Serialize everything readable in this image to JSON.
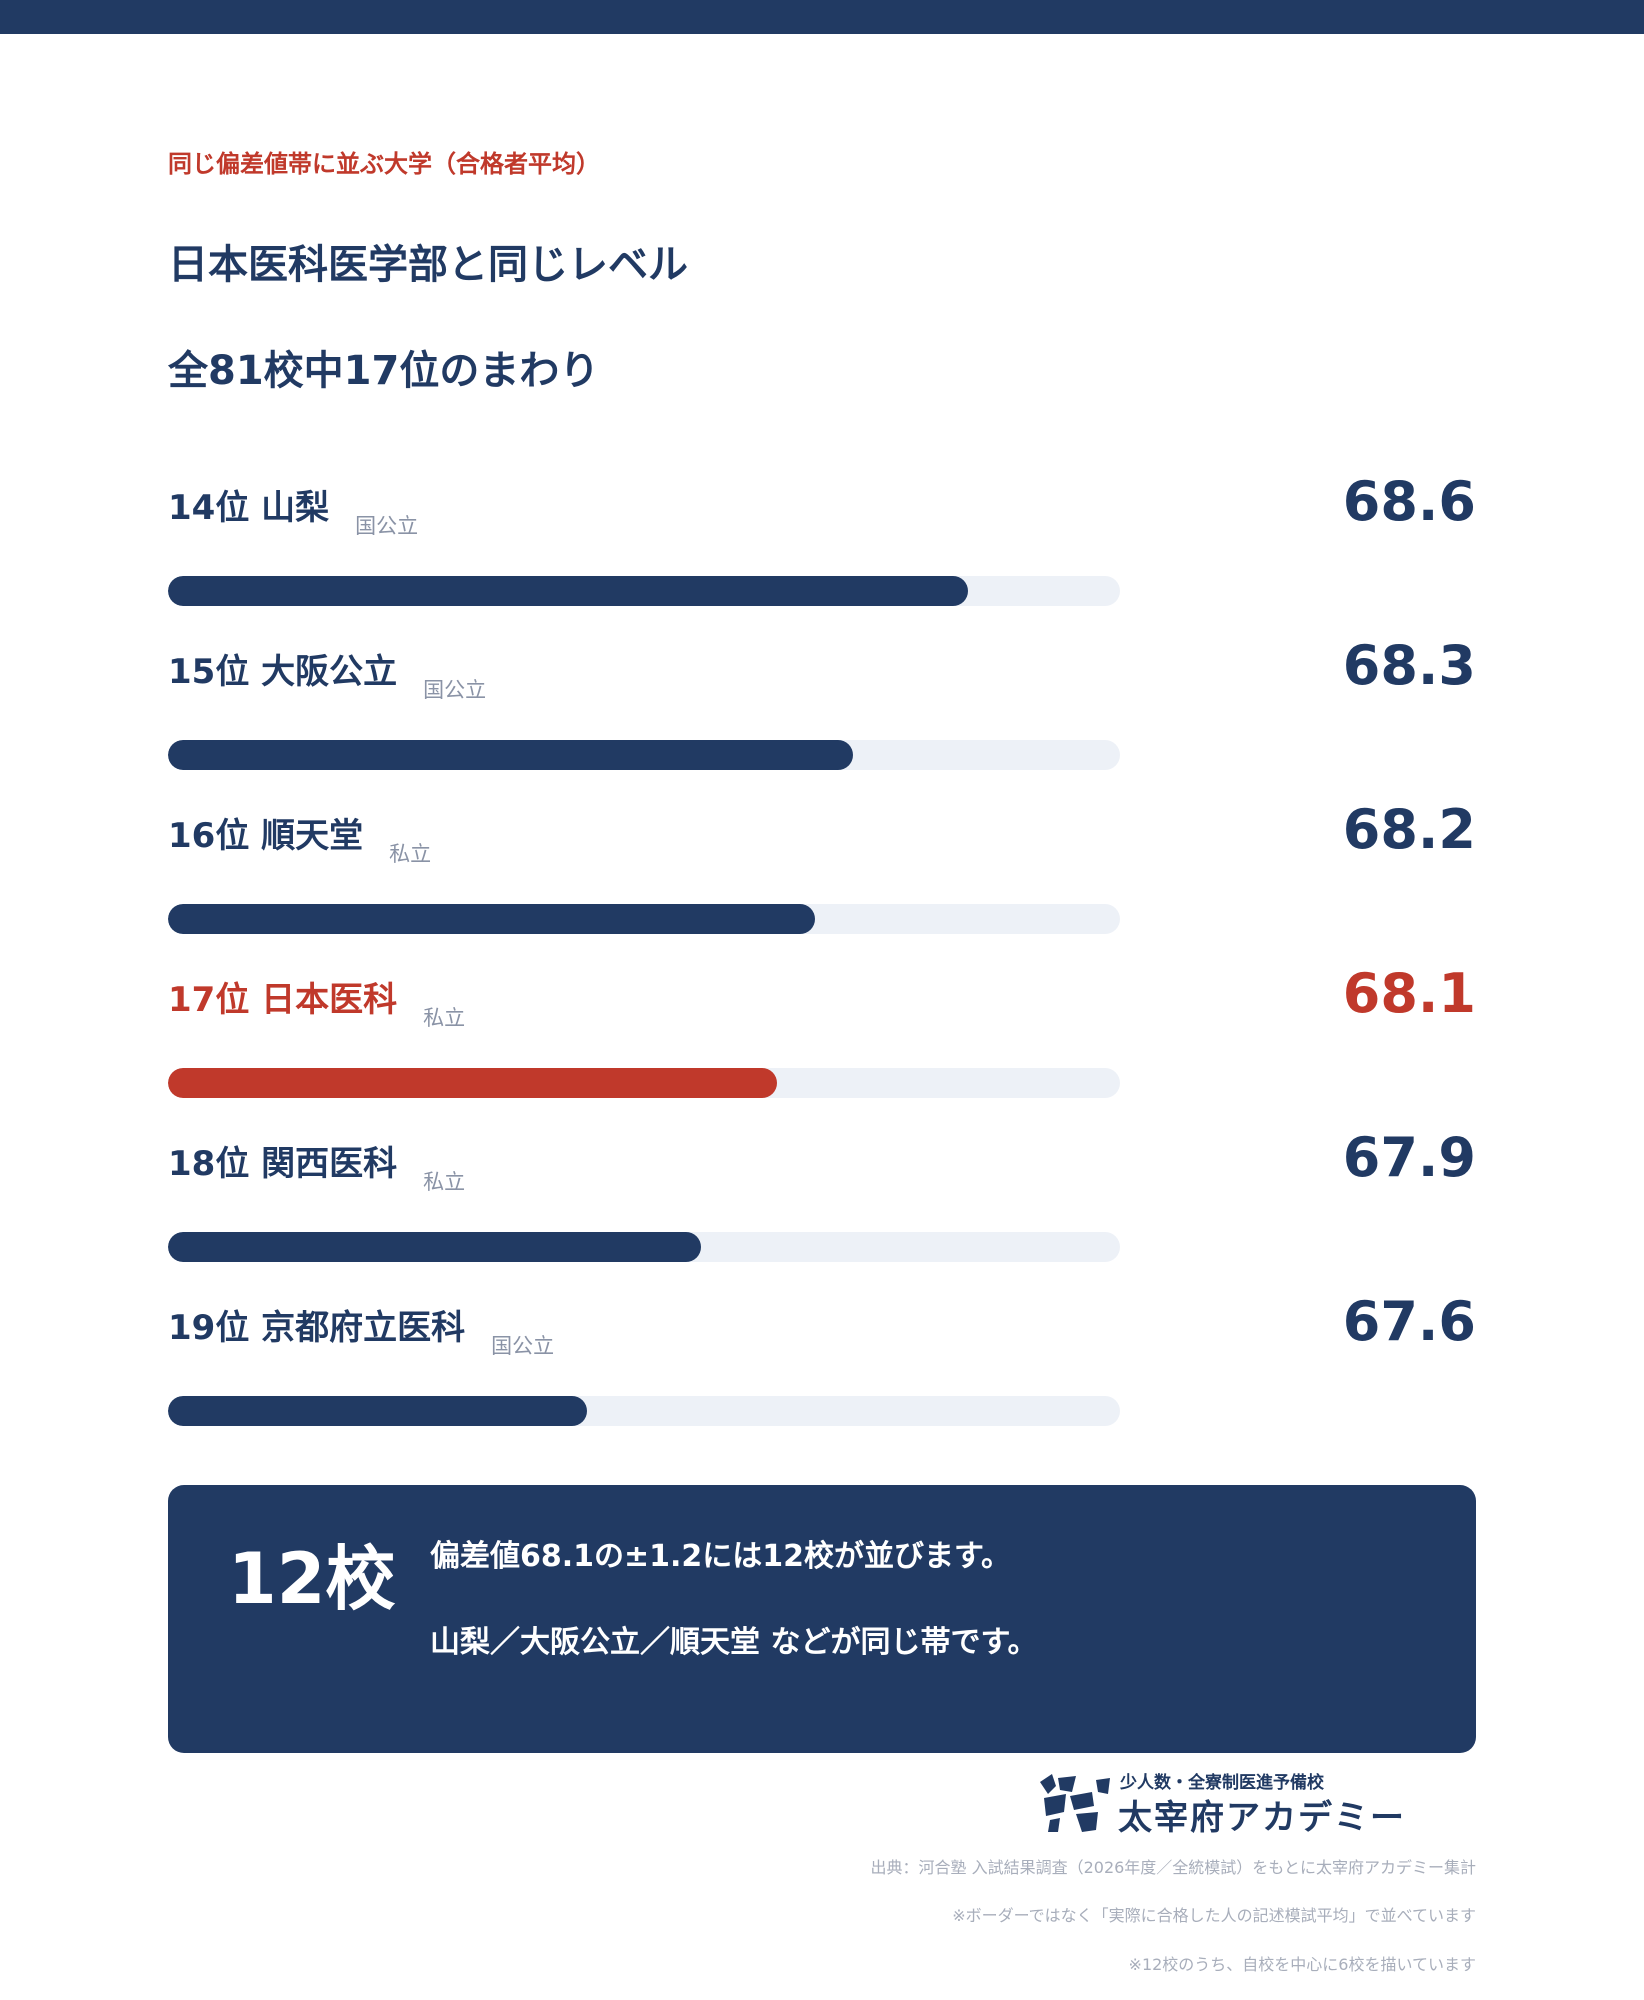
{
  "header": {
    "kicker": "同じ偏差値帯に並ぶ大学（合格者平均）",
    "title_line1": "日本医科医学部と同じレベル",
    "title_line2": "全81校中17位のまわり"
  },
  "chart_data": {
    "type": "bar",
    "orientation": "horizontal",
    "categories": [
      "14位 山梨",
      "15位 大阪公立",
      "16位 順天堂",
      "17位 日本医科",
      "18位 関西医科",
      "19位 京都府立医科"
    ],
    "types": [
      "国公立",
      "国公立",
      "私立",
      "私立",
      "私立",
      "国公立"
    ],
    "values": [
      68.6,
      68.3,
      68.2,
      68.1,
      67.9,
      67.6
    ],
    "value_labels": [
      "68.6",
      "68.3",
      "68.2",
      "68.1",
      "67.9",
      "67.6"
    ],
    "xlim": [
      66.5,
      69.0
    ],
    "highlight_index": 3,
    "title": "",
    "xlabel": "",
    "ylabel": "",
    "grid": false,
    "legend": "none",
    "colors": {
      "bar": "#213a63",
      "highlight": "#c0392b",
      "track": "#edf1f7"
    }
  },
  "summary": {
    "count": "12校",
    "line1": "偏差値68.1の±1.2には12校が並びます。",
    "line2": "山梨／大阪公立／順天堂 などが同じ帯です。"
  },
  "brand": {
    "tagline": "少人数・全寮制医進予備校",
    "name": "太宰府アカデミー"
  },
  "footnotes": [
    "出典：河合塾 入試結果調査（2026年度／全統模試）をもとに太宰府アカデミー集計",
    "※ボーダーではなく「実際に合格した人の記述模試平均」で並べています",
    "※12校のうち、自校を中心に6校を描いています"
  ],
  "colors": {
    "navy": "#213a63",
    "accent": "#c0392b",
    "muted": "#8a93a6"
  }
}
